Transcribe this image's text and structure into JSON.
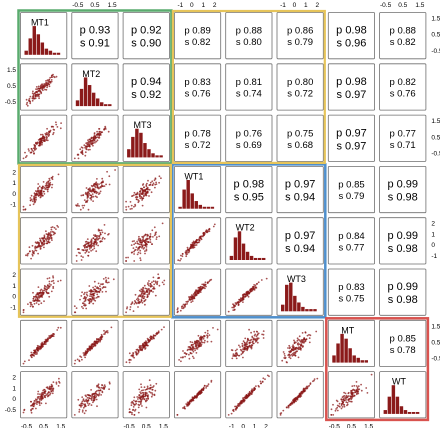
{
  "colors": {
    "points": "#8b1a1a",
    "bars": "#8b1a1a",
    "panel_border": "#6f6f6f",
    "group_green": "#5aab6e",
    "group_yellow": "#e6c45a",
    "group_blue": "#4f8fcb",
    "group_red": "#d9534f"
  },
  "chart_data": {
    "type": "scatter",
    "variables": [
      "MT1",
      "MT2",
      "MT3",
      "WT1",
      "WT2",
      "WT3",
      "MT",
      "WT"
    ],
    "correlations": [
      {
        "a": "MT1",
        "b": "MT2",
        "p": "0.93",
        "s": "0.91"
      },
      {
        "a": "MT1",
        "b": "MT3",
        "p": "0.92",
        "s": "0.90"
      },
      {
        "a": "MT1",
        "b": "WT1",
        "p": "0.89",
        "s": "0.82"
      },
      {
        "a": "MT1",
        "b": "WT2",
        "p": "0.88",
        "s": "0.80"
      },
      {
        "a": "MT1",
        "b": "WT3",
        "p": "0.86",
        "s": "0.79"
      },
      {
        "a": "MT1",
        "b": "MT",
        "p": "0.98",
        "s": "0.96"
      },
      {
        "a": "MT1",
        "b": "WT",
        "p": "0.88",
        "s": "0.82"
      },
      {
        "a": "MT2",
        "b": "MT3",
        "p": "0.94",
        "s": "0.92"
      },
      {
        "a": "MT2",
        "b": "WT1",
        "p": "0.83",
        "s": "0.76"
      },
      {
        "a": "MT2",
        "b": "WT2",
        "p": "0.81",
        "s": "0.74"
      },
      {
        "a": "MT2",
        "b": "WT3",
        "p": "0.80",
        "s": "0.72"
      },
      {
        "a": "MT2",
        "b": "MT",
        "p": "0.98",
        "s": "0.97"
      },
      {
        "a": "MT2",
        "b": "WT",
        "p": "0.82",
        "s": "0.76"
      },
      {
        "a": "MT3",
        "b": "WT1",
        "p": "0.78",
        "s": "0.72"
      },
      {
        "a": "MT3",
        "b": "WT2",
        "p": "0.76",
        "s": "0.69"
      },
      {
        "a": "MT3",
        "b": "WT3",
        "p": "0.75",
        "s": "0.68"
      },
      {
        "a": "MT3",
        "b": "MT",
        "p": "0.97",
        "s": "0.97"
      },
      {
        "a": "MT3",
        "b": "WT",
        "p": "0.77",
        "s": "0.71"
      },
      {
        "a": "WT1",
        "b": "WT2",
        "p": "0.98",
        "s": "0.95"
      },
      {
        "a": "WT1",
        "b": "WT3",
        "p": "0.97",
        "s": "0.94"
      },
      {
        "a": "WT1",
        "b": "MT",
        "p": "0.85",
        "s": "0.79"
      },
      {
        "a": "WT1",
        "b": "WT",
        "p": "0.99",
        "s": "0.98"
      },
      {
        "a": "WT2",
        "b": "WT3",
        "p": "0.97",
        "s": "0.94"
      },
      {
        "a": "WT2",
        "b": "MT",
        "p": "0.84",
        "s": "0.77"
      },
      {
        "a": "WT2",
        "b": "WT",
        "p": "0.99",
        "s": "0.98"
      },
      {
        "a": "WT3",
        "b": "MT",
        "p": "0.83",
        "s": "0.75"
      },
      {
        "a": "WT3",
        "b": "WT",
        "p": "0.99",
        "s": "0.98"
      },
      {
        "a": "MT",
        "b": "WT",
        "p": "0.85",
        "s": "0.78"
      }
    ],
    "axis_ranges": {
      "MT1": [
        -1,
        1.5
      ],
      "MT2": [
        -1,
        1.5
      ],
      "MT3": [
        -1,
        1.5
      ],
      "WT1": [
        -1,
        2
      ],
      "WT2": [
        -1,
        2
      ],
      "WT3": [
        -1,
        2
      ],
      "MT": [
        -1,
        1.5
      ],
      "WT": [
        -1,
        2
      ]
    },
    "top_axis_ticks": {
      "MT2": [
        "-0.5",
        "0.5",
        "1.5"
      ],
      "WT1": [
        "-1",
        "0",
        "1",
        "2"
      ],
      "WT3": [
        "-1",
        "0",
        "1",
        "2"
      ],
      "WT": [
        "-0.5",
        "0.5",
        "1.5"
      ]
    },
    "bottom_axis_ticks": {
      "MT1": [
        "-0.5",
        "0.5",
        "1.5"
      ],
      "MT3": [
        "-0.5",
        "0.5",
        "1.5"
      ],
      "WT2": [
        "-1",
        "0",
        "1",
        "2"
      ],
      "MT": [
        "-0.5",
        "0.5",
        "1.5"
      ]
    },
    "left_axis_ticks": {
      "MT2": [
        "1.5",
        "0.5",
        "-0.5"
      ],
      "WT1": [
        "2",
        "1",
        "0",
        "-1"
      ],
      "WT3": [
        "2",
        "1",
        "0",
        "-1"
      ],
      "WT": [
        "2",
        "1",
        "0",
        "-0.5"
      ]
    },
    "right_axis_ticks": {
      "MT1": [
        "1.5",
        "0.5",
        "-0.5"
      ],
      "MT3": [
        "1.5",
        "0.5",
        "-0.5"
      ],
      "WT2": [
        "2",
        "1",
        "0",
        "-1"
      ],
      "MT": [
        "1.5",
        "0.5",
        "-0.5"
      ]
    },
    "groups": [
      {
        "vars": [
          "MT1",
          "MT2",
          "MT3"
        ],
        "color": "#5aab6e"
      },
      {
        "vars": [
          "WT1",
          "WT2",
          "WT3"
        ],
        "color": "#4f8fcb"
      },
      {
        "vars": [
          "MT",
          "WT"
        ],
        "color": "#d9534f"
      }
    ],
    "cross_blocks": [
      {
        "rows": [
          "MT1",
          "MT2",
          "MT3"
        ],
        "cols": [
          "WT1",
          "WT2",
          "WT3"
        ],
        "color": "#e6c45a"
      },
      {
        "rows": [
          "WT1",
          "WT2",
          "WT3"
        ],
        "cols": [
          "MT1",
          "MT2",
          "MT3"
        ],
        "color": "#e6c45a"
      }
    ],
    "histograms": {
      "MT1": [
        2,
        8,
        14,
        10,
        6,
        3,
        2,
        1,
        1
      ],
      "MT2": [
        3,
        9,
        15,
        11,
        7,
        4,
        2,
        1,
        1
      ],
      "MT3": [
        4,
        10,
        14,
        12,
        7,
        4,
        2,
        1,
        1
      ],
      "WT1": [
        1,
        10,
        15,
        8,
        4,
        2,
        1,
        1,
        1
      ],
      "WT2": [
        2,
        11,
        14,
        8,
        4,
        2,
        1,
        1,
        1
      ],
      "WT3": [
        3,
        12,
        13,
        7,
        4,
        2,
        1,
        1,
        1
      ],
      "MT": [
        3,
        8,
        12,
        10,
        6,
        3,
        2,
        1,
        1
      ],
      "WT": [
        2,
        9,
        15,
        9,
        4,
        2,
        1,
        1,
        1
      ]
    }
  }
}
